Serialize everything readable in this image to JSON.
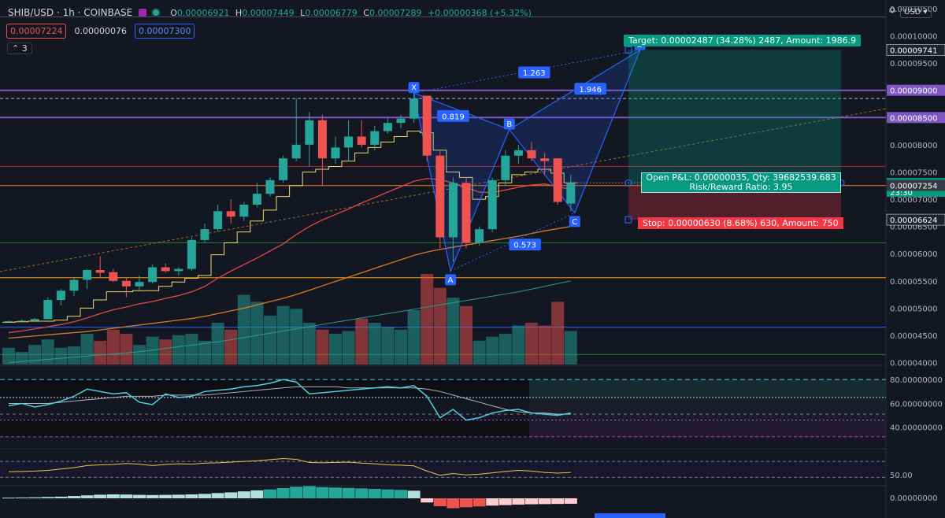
{
  "header": {
    "symbol": "SHIB/USD",
    "interval": "1h",
    "exchange": "COINBASE",
    "o_label": "O",
    "open": "0.00006921",
    "h_label": "H",
    "high": "0.00007449",
    "l_label": "L",
    "low": "0.00006779",
    "c_label": "C",
    "close": "0.00007289",
    "change": "+0.00000368 (+5.32%)",
    "bid": "0.00007224",
    "spread": "0.00000076",
    "ask": "0.00007300",
    "indicator_count": "3",
    "currency": "USD"
  },
  "colors": {
    "bg": "#131722",
    "up": "#26a69a",
    "down": "#ef5350",
    "pattern": "#2962ff",
    "ma_fast": "#f0d96a",
    "ma_mid": "#e04848",
    "ma_slow": "#d17a2a",
    "ma_long": "#2a9d8f"
  },
  "chart_data": {
    "type": "candlestick",
    "price_axis_labels": [
      "0.00010500",
      "0.00010000",
      "0.00009500",
      "0.00009000",
      "0.00008500",
      "0.00008000",
      "0.00007500",
      "0.00007000",
      "0.00006500",
      "0.00006000",
      "0.00005500",
      "0.00005000",
      "0.00004500",
      "0.00004000"
    ],
    "price_badges": [
      {
        "label": "0.00009741",
        "price": 9.741e-05,
        "style": "dark"
      },
      {
        "label": "0.00009000",
        "price": 9e-05,
        "style": "purple"
      },
      {
        "label": "0.00008500",
        "price": 8.5e-05,
        "style": "purple"
      },
      {
        "label": "0.00007289",
        "price": 7.289e-05,
        "style": "teal",
        "sub": "23:30"
      },
      {
        "label": "0.00007254",
        "price": 7.254e-05,
        "style": "gray"
      },
      {
        "label": "0.00006624",
        "price": 6.624e-05,
        "style": "dark"
      }
    ],
    "candles": [
      [
        4.75e-05,
        4.77e-05,
        4.74e-05,
        4.76e-05
      ],
      [
        4.76e-05,
        4.79e-05,
        4.75e-05,
        4.77e-05
      ],
      [
        4.77e-05,
        4.82e-05,
        4.76e-05,
        4.8e-05
      ],
      [
        4.8e-05,
        5.2e-05,
        4.79e-05,
        5.15e-05
      ],
      [
        5.15e-05,
        5.35e-05,
        5.05e-05,
        5.32e-05
      ],
      [
        5.32e-05,
        5.55e-05,
        5.22e-05,
        5.52e-05
      ],
      [
        5.52e-05,
        5.72e-05,
        5.35e-05,
        5.7e-05
      ],
      [
        5.7e-05,
        5.95e-05,
        5.55e-05,
        5.65e-05
      ],
      [
        5.66e-05,
        5.72e-05,
        5.48e-05,
        5.5e-05
      ],
      [
        5.5e-05,
        5.56e-05,
        5.2e-05,
        5.4e-05
      ],
      [
        5.4e-05,
        5.6e-05,
        5.32e-05,
        5.48e-05
      ],
      [
        5.48e-05,
        5.8e-05,
        5.45e-05,
        5.75e-05
      ],
      [
        5.75e-05,
        5.82e-05,
        5.65e-05,
        5.68e-05
      ],
      [
        5.68e-05,
        5.75e-05,
        5.6e-05,
        5.72e-05
      ],
      [
        5.72e-05,
        6.3e-05,
        5.68e-05,
        6.25e-05
      ],
      [
        6.25e-05,
        6.55e-05,
        6.2e-05,
        6.45e-05
      ],
      [
        6.45e-05,
        6.9e-05,
        6.4e-05,
        6.78e-05
      ],
      [
        6.78e-05,
        7e-05,
        6.55e-05,
        6.68e-05
      ],
      [
        6.68e-05,
        6.95e-05,
        6.6e-05,
        6.9e-05
      ],
      [
        6.9e-05,
        7.3e-05,
        6.85e-05,
        7.1e-05
      ],
      [
        7.1e-05,
        7.4e-05,
        7.05e-05,
        7.35e-05
      ],
      [
        7.35e-05,
        7.8e-05,
        7.3e-05,
        7.75e-05
      ],
      [
        7.75e-05,
        8.85e-05,
        7.7e-05,
        8e-05
      ],
      [
        8e-05,
        8.6e-05,
        7.6e-05,
        8.45e-05
      ],
      [
        8.45e-05,
        8.55e-05,
        7.25e-05,
        7.75e-05
      ],
      [
        7.75e-05,
        8.15e-05,
        7.65e-05,
        7.95e-05
      ],
      [
        7.95e-05,
        8.45e-05,
        7.7e-05,
        8.15e-05
      ],
      [
        8.15e-05,
        8.45e-05,
        7.95e-05,
        8e-05
      ],
      [
        8e-05,
        8.35e-05,
        7.9e-05,
        8.25e-05
      ],
      [
        8.25e-05,
        8.5e-05,
        8.2e-05,
        8.4e-05
      ],
      [
        8.4e-05,
        8.55e-05,
        8.3e-05,
        8.48e-05
      ],
      [
        8.48e-05,
        8.95e-05,
        8.4e-05,
        8.85e-05
      ],
      [
        8.9e-05,
        8.9e-05,
        7.7e-05,
        7.8e-05
      ],
      [
        7.8e-05,
        7.9e-05,
        6.1e-05,
        6.3e-05
      ],
      [
        6.3e-05,
        7.4e-05,
        5.85e-05,
        7.3e-05
      ],
      [
        7.3e-05,
        7.4e-05,
        6.1e-05,
        6.2e-05
      ],
      [
        6.2e-05,
        6.5e-05,
        6.15e-05,
        6.45e-05
      ],
      [
        6.45e-05,
        7.4e-05,
        6.4e-05,
        7.35e-05
      ],
      [
        7.35e-05,
        7.9e-05,
        7.25e-05,
        7.8e-05
      ],
      [
        7.8e-05,
        8e-05,
        7.65e-05,
        7.9e-05
      ],
      [
        7.9e-05,
        8.05e-05,
        7.7e-05,
        7.75e-05
      ],
      [
        7.75e-05,
        7.85e-05,
        7.45e-05,
        7.7e-05
      ],
      [
        7.75e-05,
        7.75e-05,
        6.9e-05,
        6.95e-05
      ],
      [
        6.92e-05,
        7.45e-05,
        6.78e-05,
        7.29e-05
      ]
    ],
    "ma_fast": [
      4.74e-05,
      4.75e-05,
      4.76e-05,
      4.76e-05,
      4.78e-05,
      4.85e-05,
      5e-05,
      5.15e-05,
      5.3e-05,
      5.3e-05,
      5.32e-05,
      5.32e-05,
      5.4e-05,
      5.48e-05,
      5.55e-05,
      5.6e-05,
      5.98e-05,
      6.2e-05,
      6.4e-05,
      6.6e-05,
      6.8e-05,
      7.05e-05,
      7.25e-05,
      7.5e-05,
      7.55e-05,
      7.6e-05,
      7.7e-05,
      7.85e-05,
      7.95e-05,
      8.05e-05,
      8.15e-05,
      8.25e-05,
      8.22e-05,
      7.9e-05,
      7.5e-05,
      7.4e-05,
      7e-05,
      7.05e-05,
      7.3e-05,
      7.45e-05,
      7.5e-05,
      7.55e-05,
      7.48e-05,
      7.3e-05
    ],
    "ma_mid": [
      4.55e-05,
      4.58e-05,
      4.62e-05,
      4.66e-05,
      4.7e-05,
      4.75e-05,
      4.82e-05,
      4.9e-05,
      4.97e-05,
      5.02e-05,
      5.08e-05,
      5.12e-05,
      5.18e-05,
      5.23e-05,
      5.3e-05,
      5.4e-05,
      5.55e-05,
      5.68e-05,
      5.8e-05,
      5.92e-05,
      6.05e-05,
      6.18e-05,
      6.35e-05,
      6.5e-05,
      6.62e-05,
      6.72e-05,
      6.82e-05,
      6.93e-05,
      7.03e-05,
      7.13e-05,
      7.23e-05,
      7.33e-05,
      7.38e-05,
      7.36e-05,
      7.3e-05,
      7.22e-05,
      7.13e-05,
      7.12e-05,
      7.17e-05,
      7.22e-05,
      7.26e-05,
      7.28e-05,
      7.23e-05,
      7.18e-05
    ],
    "ma_slow": [
      4.45e-05,
      4.47e-05,
      4.49e-05,
      4.51e-05,
      4.53e-05,
      4.55e-05,
      4.57e-05,
      4.6e-05,
      4.63e-05,
      4.66e-05,
      4.69e-05,
      4.72e-05,
      4.75e-05,
      4.78e-05,
      4.81e-05,
      4.85e-05,
      4.9e-05,
      4.95e-05,
      5e-05,
      5.06e-05,
      5.12e-05,
      5.18e-05,
      5.25e-05,
      5.33e-05,
      5.41e-05,
      5.49e-05,
      5.57e-05,
      5.65e-05,
      5.73e-05,
      5.81e-05,
      5.89e-05,
      5.97e-05,
      6.03e-05,
      6.08e-05,
      6.12e-05,
      6.16e-05,
      6.2e-05,
      6.24e-05,
      6.28e-05,
      6.32e-05,
      6.37e-05,
      6.42e-05,
      6.46e-05,
      6.5e-05
    ],
    "ma_long": [
      4e-05,
      4.02e-05,
      4.04e-05,
      4.06e-05,
      4.08e-05,
      4.1e-05,
      4.12e-05,
      4.14e-05,
      4.16e-05,
      4.18e-05,
      4.2e-05,
      4.23e-05,
      4.26e-05,
      4.29e-05,
      4.32e-05,
      4.35e-05,
      4.38e-05,
      4.42e-05,
      4.46e-05,
      4.5e-05,
      4.54e-05,
      4.58e-05,
      4.62e-05,
      4.66e-05,
      4.7e-05,
      4.74e-05,
      4.78e-05,
      4.82e-05,
      4.86e-05,
      4.9e-05,
      4.94e-05,
      4.98e-05,
      5.02e-05,
      5.06e-05,
      5.1e-05,
      5.14e-05,
      5.18e-05,
      5.22e-05,
      5.26e-05,
      5.3e-05,
      5.35e-05,
      5.4e-05,
      5.45e-05,
      5.5e-05
    ],
    "volume": [
      12,
      9,
      14,
      18,
      12,
      13,
      22,
      17,
      25,
      22,
      14,
      20,
      18,
      21,
      22,
      17,
      30,
      25,
      50,
      45,
      35,
      42,
      40,
      30,
      25,
      22,
      24,
      33,
      30,
      27,
      25,
      39,
      65,
      55,
      48,
      42,
      17,
      20,
      22,
      28,
      30,
      28,
      45,
      24
    ],
    "rsi": [
      58,
      60,
      57,
      59,
      62,
      66,
      72,
      70,
      68,
      69,
      61,
      59,
      68,
      65,
      66,
      70,
      71,
      72,
      74,
      75,
      77,
      80,
      78,
      68,
      69,
      70,
      71,
      72,
      73,
      74,
      73,
      75,
      66,
      48,
      55,
      46,
      48,
      52,
      54,
      55,
      52,
      51,
      50,
      52
    ],
    "rsi_ma": [
      60,
      60,
      60,
      60,
      61,
      62,
      63,
      64,
      65,
      66,
      66,
      66,
      67,
      67,
      67,
      67,
      68,
      69,
      70,
      71,
      72,
      73,
      74,
      74,
      74,
      74,
      73,
      73,
      73,
      73,
      73,
      73,
      72,
      70,
      67,
      64,
      61,
      58,
      55,
      53,
      52,
      52,
      51,
      51
    ],
    "osc": [
      50.8,
      50.9,
      51.0,
      51.2,
      51.6,
      52.0,
      52.6,
      52.8,
      52.9,
      53.2,
      53.0,
      52.6,
      52.9,
      53.1,
      53.0,
      53.3,
      53.4,
      53.6,
      53.8,
      54.0,
      54.3,
      54.6,
      54.4,
      53.5,
      53.4,
      53.5,
      53.6,
      53.3,
      53.1,
      52.8,
      52.7,
      52.5,
      51.0,
      49.8,
      50.3,
      49.9,
      50.1,
      50.5,
      50.9,
      51.2,
      51.0,
      50.6,
      50.4,
      50.6
    ],
    "macd": [
      0.4,
      0.5,
      0.6,
      0.8,
      1.0,
      1.4,
      1.8,
      2.2,
      2.4,
      2.3,
      2.1,
      2.0,
      2.1,
      2.2,
      2.4,
      2.7,
      3.2,
      3.6,
      4.2,
      4.8,
      5.4,
      6.2,
      7.0,
      7.4,
      6.8,
      6.5,
      6.3,
      6.0,
      5.7,
      5.4,
      5.1,
      4.6,
      -2.5,
      -4.8,
      -6.0,
      -5.4,
      -4.9,
      -4.4,
      -4.1,
      -3.8,
      -3.6,
      -3.5,
      -3.4,
      -3.3
    ],
    "pattern_points": [
      {
        "label": "X",
        "i": 31,
        "p": 8.95e-05
      },
      {
        "label": "A",
        "i": 33.8,
        "p": 5.68e-05
      },
      {
        "label": "B",
        "i": 38.3,
        "p": 8.28e-05
      },
      {
        "label": "C",
        "i": 43.3,
        "p": 6.75e-05
      },
      {
        "label": "D",
        "i": 48.3,
        "p": 9.74e-05
      }
    ],
    "fib_labels": [
      {
        "label": "0.819",
        "i": 34.0,
        "p": 8.52e-05
      },
      {
        "label": "1.263",
        "i": 40.2,
        "p": 9.32e-05
      },
      {
        "label": "1.946",
        "i": 44.5,
        "p": 9.02e-05
      },
      {
        "label": "0.573",
        "i": 39.5,
        "p": 6.16e-05
      }
    ],
    "h_levels": [
      {
        "p": 0.0001035,
        "color": "#4c525e",
        "style": "solid"
      },
      {
        "p": 9e-05,
        "color": "#7e57c2",
        "style": "solid"
      },
      {
        "p": 8.85e-05,
        "color": "#b2b5be",
        "style": "dashed"
      },
      {
        "p": 8.5e-05,
        "color": "#7e57c2",
        "style": "solid"
      },
      {
        "p": 7.6e-05,
        "color": "#b71c1c",
        "style": "solid"
      },
      {
        "p": 7.25e-05,
        "color": "#f57f17",
        "style": "solid"
      },
      {
        "p": 6.2e-05,
        "color": "#2e7d32",
        "style": "solid"
      },
      {
        "p": 5.56e-05,
        "color": "#ff9800",
        "style": "solid"
      },
      {
        "p": 4.65e-05,
        "color": "#2962ff",
        "style": "solid"
      },
      {
        "p": 4.15e-05,
        "color": "#2e7d32",
        "style": "solid"
      }
    ],
    "trade": {
      "entry": 7.254e-05,
      "target": 9.741e-05,
      "stop": 6.624e-05,
      "target_label": "Target: 0.00002487 (34.28%) 2487, Amount: 1986.9",
      "stop_label": "Stop: 0.00000630 (8.68%) 630, Amount: 750",
      "pnl_label": "Open P&L: 0.00000035, Qty: 39682539.683",
      "rr_label": "Risk/Reward Ratio: 3.95"
    },
    "rsi_axis_labels": [
      "80.00000000",
      "60.00000000",
      "40.00000000"
    ],
    "osc_axis_labels": [
      "50.00"
    ],
    "macd_axis_labels": [
      "0.00000000"
    ]
  }
}
